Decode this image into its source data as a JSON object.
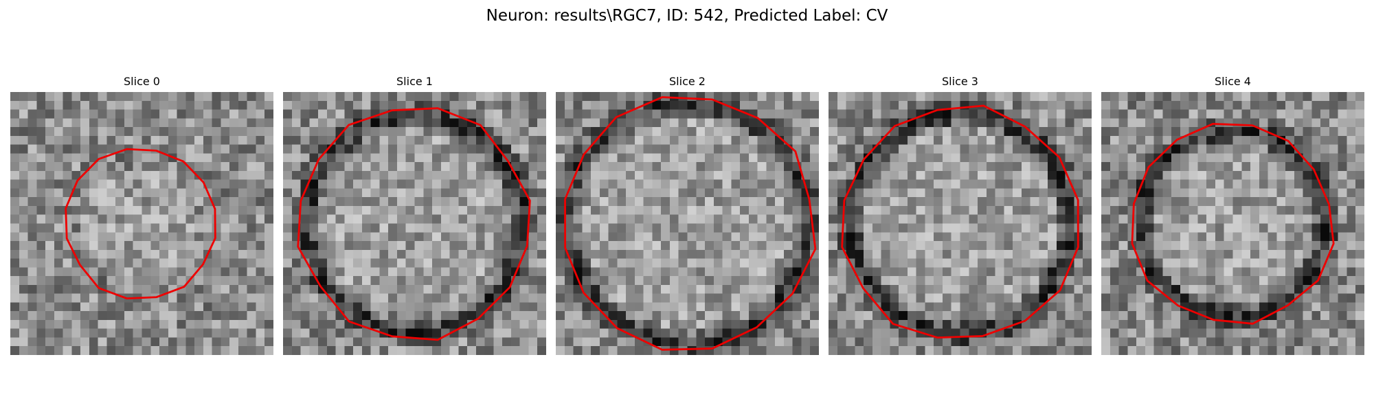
{
  "figure": {
    "title": "Neuron: results\\RGC7, ID: 542, Predicted Label: CV"
  },
  "panels": [
    {
      "title": "Slice 0",
      "contour_color": "#ee0000",
      "ring": 0.1,
      "radius": 8.6,
      "seed": 11
    },
    {
      "title": "Slice 1",
      "contour_color": "#ee0000",
      "ring": 0.85,
      "radius": 13.2,
      "seed": 23
    },
    {
      "title": "Slice 2",
      "contour_color": "#ee0000",
      "ring": 0.8,
      "radius": 14.6,
      "seed": 37
    },
    {
      "title": "Slice 3",
      "contour_color": "#ee0000",
      "ring": 0.9,
      "radius": 13.4,
      "seed": 51
    },
    {
      "title": "Slice 4",
      "contour_color": "#ee0000",
      "ring": 0.85,
      "radius": 11.4,
      "seed": 67
    }
  ]
}
